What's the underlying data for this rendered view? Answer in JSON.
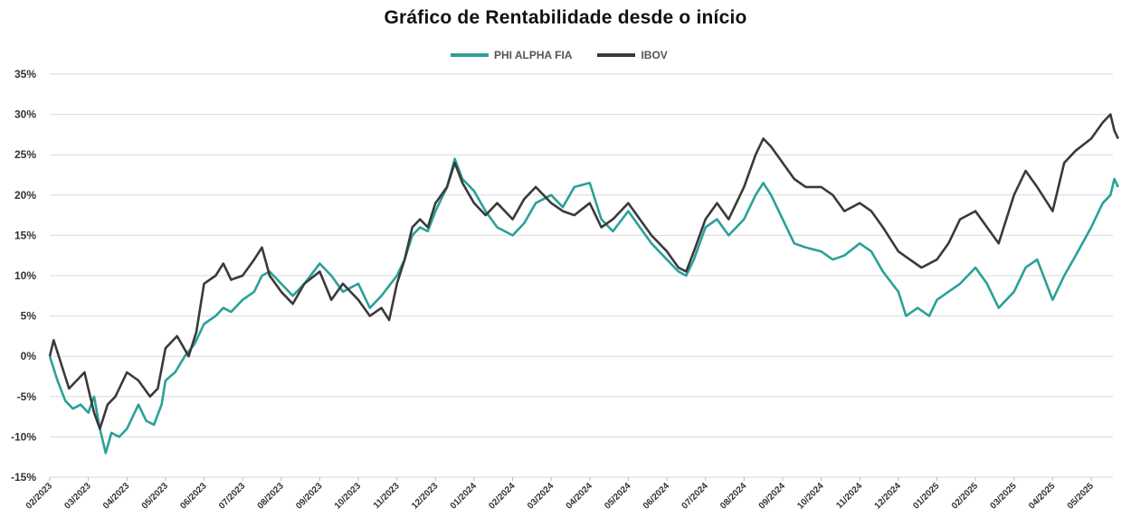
{
  "chart_data": {
    "type": "line",
    "title": "Gráfico de Rentabilidade desde o início",
    "y_unit": "%",
    "ylim": [
      -15,
      35
    ],
    "ytick_step": 5,
    "ytick_labels": [
      "35%",
      "30%",
      "25%",
      "20%",
      "15%",
      "10%",
      "5%",
      "0%",
      "-5%",
      "-10%",
      "-15%"
    ],
    "grid": "horizontal",
    "legend_position": "top-center",
    "x_tick_labels": [
      "02/2023",
      "03/2023",
      "04/2023",
      "05/2023",
      "06/2023",
      "07/2023",
      "08/2023",
      "09/2023",
      "10/2023",
      "11/2023",
      "12/2023",
      "01/2024",
      "02/2024",
      "03/2024",
      "04/2024",
      "05/2024",
      "06/2024",
      "07/2024",
      "08/2024",
      "09/2024",
      "10/2024",
      "11/2024",
      "12/2024",
      "01/2025",
      "02/2025",
      "03/2025",
      "04/2025",
      "05/2025"
    ],
    "series": [
      {
        "name": "PHI ALPHA FIA",
        "color": "#2aa198",
        "points": [
          [
            "02/2023",
            0
          ],
          [
            "02/2023+0.2",
            -3
          ],
          [
            "02/2023+0.4",
            -5.5
          ],
          [
            "02/2023+0.6",
            -6.5
          ],
          [
            "02/2023+0.8",
            -6
          ],
          [
            "03/2023",
            -7
          ],
          [
            "03/2023+0.15",
            -5
          ],
          [
            "03/2023+0.3",
            -9
          ],
          [
            "03/2023+0.45",
            -12
          ],
          [
            "03/2023+0.6",
            -9.5
          ],
          [
            "03/2023+0.8",
            -10
          ],
          [
            "04/2023",
            -9
          ],
          [
            "04/2023+0.3",
            -6
          ],
          [
            "04/2023+0.5",
            -8
          ],
          [
            "04/2023+0.7",
            -8.5
          ],
          [
            "04/2023+0.9",
            -6
          ],
          [
            "05/2023",
            -3
          ],
          [
            "05/2023+0.25",
            -2
          ],
          [
            "05/2023+0.5",
            0
          ],
          [
            "05/2023+0.75",
            1.5
          ],
          [
            "06/2023",
            4
          ],
          [
            "06/2023+0.3",
            5
          ],
          [
            "06/2023+0.5",
            6
          ],
          [
            "06/2023+0.7",
            5.5
          ],
          [
            "07/2023",
            7
          ],
          [
            "07/2023+0.3",
            8
          ],
          [
            "07/2023+0.5",
            10
          ],
          [
            "07/2023+0.7",
            10.5
          ],
          [
            "08/2023",
            9
          ],
          [
            "08/2023+0.3",
            7.5
          ],
          [
            "08/2023+0.6",
            9
          ],
          [
            "09/2023",
            11.5
          ],
          [
            "09/2023+0.3",
            10
          ],
          [
            "09/2023+0.6",
            8
          ],
          [
            "10/2023",
            9
          ],
          [
            "10/2023+0.3",
            6
          ],
          [
            "10/2023+0.6",
            7.5
          ],
          [
            "11/2023",
            10
          ],
          [
            "11/2023+0.2",
            12
          ],
          [
            "11/2023+0.4",
            15
          ],
          [
            "11/2023+0.6",
            16
          ],
          [
            "11/2023+0.8",
            15.5
          ],
          [
            "12/2023",
            18
          ],
          [
            "12/2023+0.3",
            21
          ],
          [
            "12/2023+0.5",
            24.5
          ],
          [
            "12/2023+0.7",
            22
          ],
          [
            "01/2024",
            20.5
          ],
          [
            "01/2024+0.3",
            18
          ],
          [
            "01/2024+0.6",
            16
          ],
          [
            "02/2024",
            15
          ],
          [
            "02/2024+0.3",
            16.5
          ],
          [
            "02/2024+0.6",
            19
          ],
          [
            "03/2024",
            20
          ],
          [
            "03/2024+0.3",
            18.5
          ],
          [
            "03/2024+0.6",
            21
          ],
          [
            "04/2024",
            21.5
          ],
          [
            "04/2024+0.3",
            17
          ],
          [
            "04/2024+0.6",
            15.5
          ],
          [
            "05/2024",
            18
          ],
          [
            "05/2024+0.3",
            16
          ],
          [
            "05/2024+0.6",
            14
          ],
          [
            "06/2024",
            12
          ],
          [
            "06/2024+0.3",
            10.5
          ],
          [
            "06/2024+0.5",
            10
          ],
          [
            "06/2024+0.7",
            12
          ],
          [
            "07/2024",
            16
          ],
          [
            "07/2024+0.3",
            17
          ],
          [
            "07/2024+0.6",
            15
          ],
          [
            "08/2024",
            17
          ],
          [
            "08/2024+0.3",
            20
          ],
          [
            "08/2024+0.5",
            21.5
          ],
          [
            "08/2024+0.7",
            20
          ],
          [
            "09/2024",
            17
          ],
          [
            "09/2024+0.3",
            14
          ],
          [
            "09/2024+0.6",
            13.5
          ],
          [
            "10/2024",
            13
          ],
          [
            "10/2024+0.3",
            12
          ],
          [
            "10/2024+0.6",
            12.5
          ],
          [
            "11/2024",
            14
          ],
          [
            "11/2024+0.3",
            13
          ],
          [
            "11/2024+0.6",
            10.5
          ],
          [
            "12/2024",
            8
          ],
          [
            "12/2024+0.2",
            5
          ],
          [
            "12/2024+0.5",
            6
          ],
          [
            "12/2024+0.8",
            5
          ],
          [
            "01/2025",
            7
          ],
          [
            "01/2025+0.3",
            8
          ],
          [
            "01/2025+0.6",
            9
          ],
          [
            "02/2025",
            11
          ],
          [
            "02/2025+0.3",
            9
          ],
          [
            "02/2025+0.6",
            6
          ],
          [
            "03/2025",
            8
          ],
          [
            "03/2025+0.3",
            11
          ],
          [
            "03/2025+0.6",
            12
          ],
          [
            "04/2025",
            7
          ],
          [
            "04/2025+0.3",
            10
          ],
          [
            "04/2025+0.6",
            12.5
          ],
          [
            "05/2025",
            16
          ],
          [
            "05/2025+0.3",
            19
          ],
          [
            "05/2025+0.5",
            20
          ],
          [
            "05/2025+0.6",
            22
          ],
          [
            "05/2025+0.7",
            21
          ]
        ]
      },
      {
        "name": "IBOV",
        "color": "#3a3a3a",
        "points": [
          [
            "02/2023",
            0
          ],
          [
            "02/2023+0.1",
            2
          ],
          [
            "02/2023+0.3",
            -1
          ],
          [
            "02/2023+0.5",
            -4
          ],
          [
            "02/2023+0.7",
            -3
          ],
          [
            "02/2023+0.9",
            -2
          ],
          [
            "03/2023",
            -4
          ],
          [
            "03/2023+0.15",
            -7
          ],
          [
            "03/2023+0.3",
            -9
          ],
          [
            "03/2023+0.5",
            -6
          ],
          [
            "03/2023+0.7",
            -5
          ],
          [
            "04/2023",
            -2
          ],
          [
            "04/2023+0.3",
            -3
          ],
          [
            "04/2023+0.6",
            -5
          ],
          [
            "04/2023+0.8",
            -4
          ],
          [
            "05/2023",
            1
          ],
          [
            "05/2023+0.3",
            2.5
          ],
          [
            "05/2023+0.6",
            0
          ],
          [
            "05/2023+0.8",
            3
          ],
          [
            "06/2023",
            9
          ],
          [
            "06/2023+0.3",
            10
          ],
          [
            "06/2023+0.5",
            11.5
          ],
          [
            "06/2023+0.7",
            9.5
          ],
          [
            "07/2023",
            10
          ],
          [
            "07/2023+0.3",
            12
          ],
          [
            "07/2023+0.5",
            13.5
          ],
          [
            "07/2023+0.7",
            10
          ],
          [
            "08/2023",
            8
          ],
          [
            "08/2023+0.3",
            6.5
          ],
          [
            "08/2023+0.6",
            9
          ],
          [
            "09/2023",
            10.5
          ],
          [
            "09/2023+0.3",
            7
          ],
          [
            "09/2023+0.6",
            9
          ],
          [
            "10/2023",
            7
          ],
          [
            "10/2023+0.3",
            5
          ],
          [
            "10/2023+0.6",
            6
          ],
          [
            "10/2023+0.8",
            4.5
          ],
          [
            "11/2023",
            9
          ],
          [
            "11/2023+0.2",
            12
          ],
          [
            "11/2023+0.4",
            16
          ],
          [
            "11/2023+0.6",
            17
          ],
          [
            "11/2023+0.8",
            16
          ],
          [
            "12/2023",
            19
          ],
          [
            "12/2023+0.3",
            21
          ],
          [
            "12/2023+0.5",
            24
          ],
          [
            "12/2023+0.7",
            21.5
          ],
          [
            "01/2024",
            19
          ],
          [
            "01/2024+0.3",
            17.5
          ],
          [
            "01/2024+0.6",
            19
          ],
          [
            "02/2024",
            17
          ],
          [
            "02/2024+0.3",
            19.5
          ],
          [
            "02/2024+0.6",
            21
          ],
          [
            "03/2024",
            19
          ],
          [
            "03/2024+0.3",
            18
          ],
          [
            "03/2024+0.6",
            17.5
          ],
          [
            "04/2024",
            19
          ],
          [
            "04/2024+0.3",
            16
          ],
          [
            "04/2024+0.6",
            17
          ],
          [
            "05/2024",
            19
          ],
          [
            "05/2024+0.3",
            17
          ],
          [
            "05/2024+0.6",
            15
          ],
          [
            "06/2024",
            13
          ],
          [
            "06/2024+0.3",
            11
          ],
          [
            "06/2024+0.5",
            10.5
          ],
          [
            "06/2024+0.7",
            13
          ],
          [
            "07/2024",
            17
          ],
          [
            "07/2024+0.3",
            19
          ],
          [
            "07/2024+0.6",
            17
          ],
          [
            "08/2024",
            21
          ],
          [
            "08/2024+0.3",
            25
          ],
          [
            "08/2024+0.5",
            27
          ],
          [
            "08/2024+0.7",
            26
          ],
          [
            "09/2024",
            24
          ],
          [
            "09/2024+0.3",
            22
          ],
          [
            "09/2024+0.6",
            21
          ],
          [
            "10/2024",
            21
          ],
          [
            "10/2024+0.3",
            20
          ],
          [
            "10/2024+0.6",
            18
          ],
          [
            "11/2024",
            19
          ],
          [
            "11/2024+0.3",
            18
          ],
          [
            "11/2024+0.6",
            16
          ],
          [
            "12/2024",
            13
          ],
          [
            "12/2024+0.3",
            12
          ],
          [
            "12/2024+0.6",
            11
          ],
          [
            "01/2025",
            12
          ],
          [
            "01/2025+0.3",
            14
          ],
          [
            "01/2025+0.6",
            17
          ],
          [
            "02/2025",
            18
          ],
          [
            "02/2025+0.3",
            16
          ],
          [
            "02/2025+0.6",
            14
          ],
          [
            "03/2025",
            20
          ],
          [
            "03/2025+0.3",
            23
          ],
          [
            "03/2025+0.6",
            21
          ],
          [
            "04/2025",
            18
          ],
          [
            "04/2025+0.3",
            24
          ],
          [
            "04/2025+0.6",
            25.5
          ],
          [
            "05/2025",
            27
          ],
          [
            "05/2025+0.3",
            29
          ],
          [
            "05/2025+0.5",
            30
          ],
          [
            "05/2025+0.6",
            28
          ],
          [
            "05/2025+0.7",
            27
          ]
        ]
      }
    ]
  }
}
